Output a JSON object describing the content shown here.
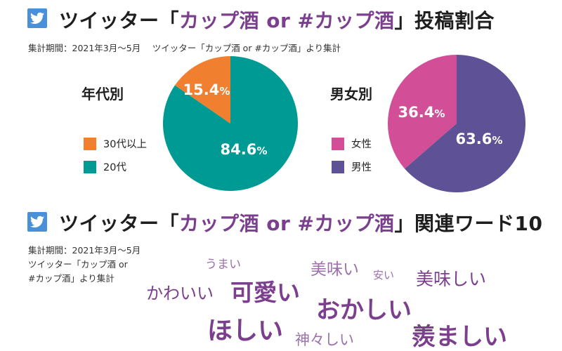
{
  "header1": {
    "prefix": "ツイッター「",
    "highlight": "カップ酒 or #カップ酒",
    "suffix": "」投稿割合"
  },
  "subtitle1": "集計期間：2021年3月〜5月　 ツイッター「カップ酒 or #カップ酒」より集計",
  "header2": {
    "prefix": "ツイッター「",
    "highlight": "カップ酒 or #カップ酒",
    "suffix": "」関連ワード10"
  },
  "subtitle2": {
    "line1": "集計期間：2021年3月〜5月",
    "line2": "ツイッター「カップ酒 or",
    "line3": "#カップ酒」より集計"
  },
  "icons": {
    "header1": "twitter-bird-icon",
    "header2": "twitter-bird-icon"
  },
  "chart_data": [
    {
      "type": "pie",
      "title": "年代別",
      "categories": [
        "30代以上",
        "20代"
      ],
      "values": [
        15.4,
        84.6
      ],
      "unit": "%",
      "colors": [
        "#f08030",
        "#009a94"
      ],
      "legend": "left"
    },
    {
      "type": "pie",
      "title": "男女別",
      "categories": [
        "女性",
        "男性"
      ],
      "values": [
        36.4,
        63.6
      ],
      "unit": "%",
      "colors": [
        "#d24f98",
        "#5e5196"
      ],
      "legend": "left"
    }
  ],
  "word_cloud": {
    "type": "word-cloud",
    "words": [
      {
        "text": "うまい"
      },
      {
        "text": "美味い"
      },
      {
        "text": "安い"
      },
      {
        "text": "美味しい"
      },
      {
        "text": "かわいい"
      },
      {
        "text": "可愛い"
      },
      {
        "text": "おかしい"
      },
      {
        "text": "ほしい"
      },
      {
        "text": "神々しい"
      },
      {
        "text": "羨ましい"
      }
    ]
  }
}
